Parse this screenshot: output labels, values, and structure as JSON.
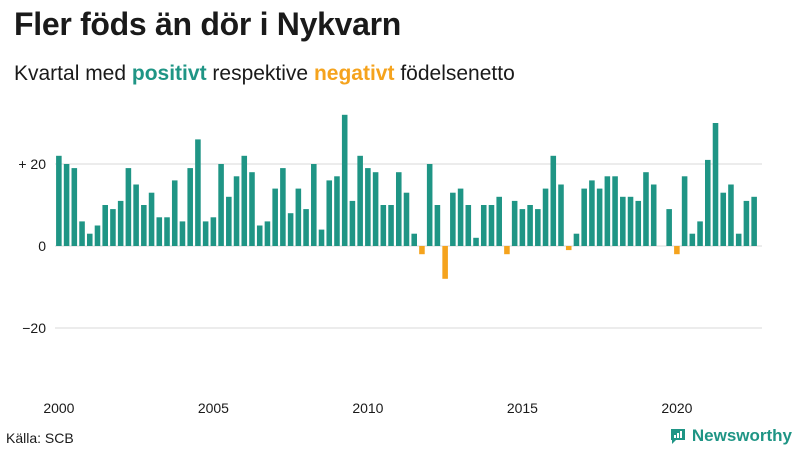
{
  "header": {
    "title": "Fler föds än dör i Nykvarn",
    "subtitle_prefix": "Kvartal med",
    "subtitle_positive": "positivt",
    "subtitle_middle": "respektive",
    "subtitle_negative": "negativt",
    "subtitle_suffix": "födelsenetto"
  },
  "footer": {
    "source": "Källa: SCB",
    "brand": "Newsworthy"
  },
  "colors": {
    "positive": "#1f9585",
    "negative": "#f5a31d",
    "grid": "#d9d9d9",
    "text": "#1a1a1a"
  },
  "chart_data": {
    "type": "bar",
    "title": "Fler föds än dör i Nykvarn",
    "subtitle": "Kvartal med positivt respektive negativt födelsenetto",
    "xlabel": "",
    "ylabel": "",
    "start_year": 2000,
    "x_tick_labels": [
      "2000",
      "2005",
      "2010",
      "2015",
      "2020"
    ],
    "y_ticks": [
      {
        "value": 20,
        "label": "+ 20"
      },
      {
        "value": 0,
        "label": "0"
      },
      {
        "value": -20,
        "label": "−20"
      }
    ],
    "ylim": [
      -35,
      35
    ],
    "grid": true,
    "values": [
      22,
      20,
      19,
      6,
      3,
      5,
      10,
      9,
      11,
      19,
      15,
      10,
      13,
      7,
      7,
      16,
      6,
      19,
      26,
      6,
      7,
      20,
      12,
      17,
      22,
      18,
      5,
      6,
      14,
      19,
      8,
      14,
      9,
      20,
      4,
      16,
      17,
      32,
      11,
      22,
      19,
      18,
      10,
      10,
      18,
      13,
      3,
      -2,
      20,
      10,
      -8,
      13,
      14,
      10,
      2,
      10,
      10,
      12,
      -2,
      11,
      9,
      10,
      9,
      14,
      22,
      15,
      -1,
      3,
      14,
      16,
      14,
      17,
      17,
      12,
      12,
      11,
      18,
      15,
      0,
      9,
      -2,
      17,
      3,
      6,
      21,
      30,
      13,
      15,
      3,
      11,
      12
    ]
  }
}
